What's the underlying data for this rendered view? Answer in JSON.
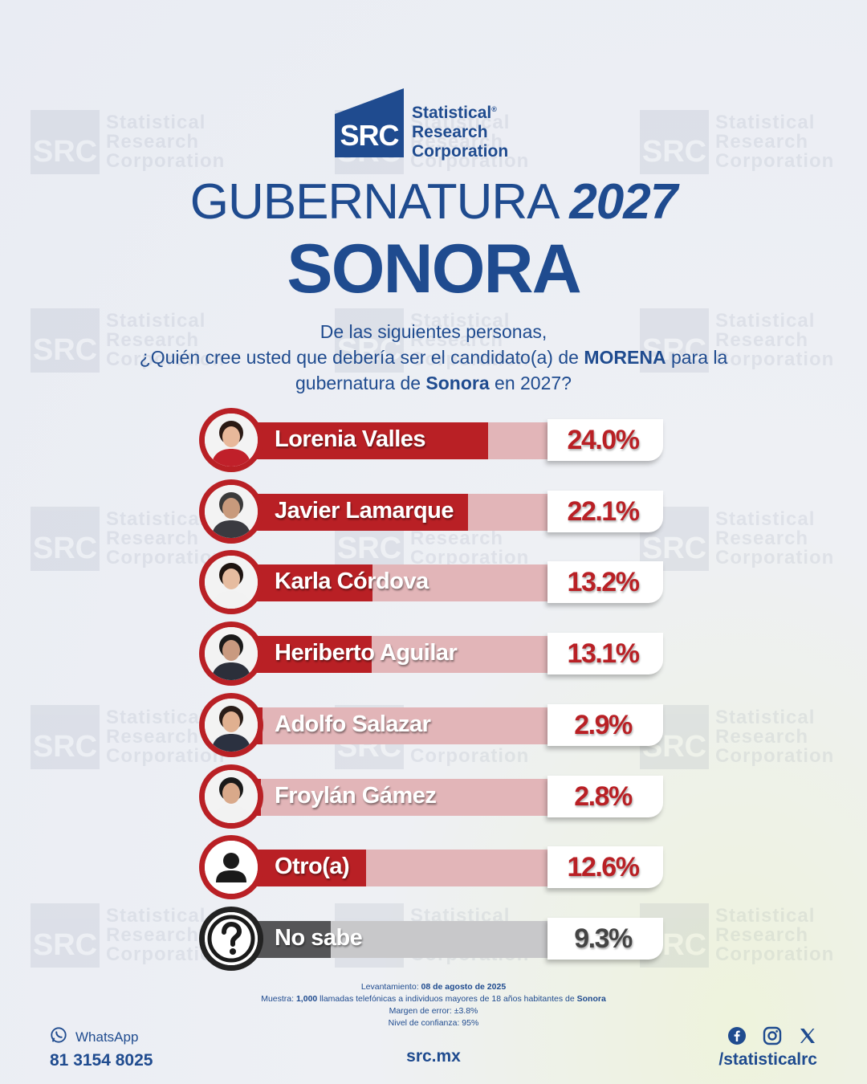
{
  "brand": {
    "logo_abbr": "SRC",
    "name_line1": "Statistical",
    "name_line2": "Research",
    "name_line3": "Corporation",
    "registered": "®"
  },
  "header": {
    "title_prefix": "GUBERNATURA",
    "title_year": "2027",
    "subtitle": "SONORA"
  },
  "question": {
    "line1": "De las siguientes personas,",
    "line2_a": "¿Quién cree usted que debería ser el candidato(a) de ",
    "line2_b": "MORENA",
    "line2_c": " para la",
    "line3_a": "gubernatura de ",
    "line3_b": "Sonora",
    "line3_c": " en 2027?"
  },
  "chart_data": {
    "type": "bar",
    "orientation": "horizontal",
    "categories": [
      "Lorenia Valles",
      "Javier Lamarque",
      "Karla Córdova",
      "Heriberto Aguilar",
      "Adolfo Salazar",
      "Froylán Gámez",
      "Otro(a)",
      "No sabe"
    ],
    "values": [
      24.0,
      22.1,
      13.2,
      13.1,
      2.9,
      2.8,
      12.6,
      9.3
    ],
    "labels": [
      "24.0%",
      "22.1%",
      "13.2%",
      "13.1%",
      "2.9%",
      "2.8%",
      "12.6%",
      "9.3%"
    ],
    "xlim": [
      0,
      30
    ],
    "colors": {
      "bar": "#b92025",
      "track": "#e2b5b8",
      "no_sabe_bar": "#555557",
      "no_sabe_track": "#c8c8ca"
    },
    "icons": [
      "photo",
      "photo",
      "photo",
      "photo",
      "photo",
      "photo",
      "person-icon",
      "question-icon"
    ]
  },
  "footnote": {
    "survey_label": "Levantamiento: ",
    "survey_date": "08 de agosto de 2025",
    "sample_label": "Muestra: ",
    "sample_size": "1,000",
    "sample_text": " llamadas telefónicas a individuos mayores de 18 años habitantes de ",
    "sample_place": "Sonora",
    "margin": "Margen de error: ±3.8%",
    "confidence": "Nivel de confianza: 95%"
  },
  "contact": {
    "whatsapp_label": "WhatsApp",
    "whatsapp_number": "81 3154 8025",
    "website": "src.mx",
    "social_handle": "/statisticalrc"
  },
  "colors": {
    "brand_blue": "#1f4b8f",
    "brand_red": "#b92025"
  }
}
